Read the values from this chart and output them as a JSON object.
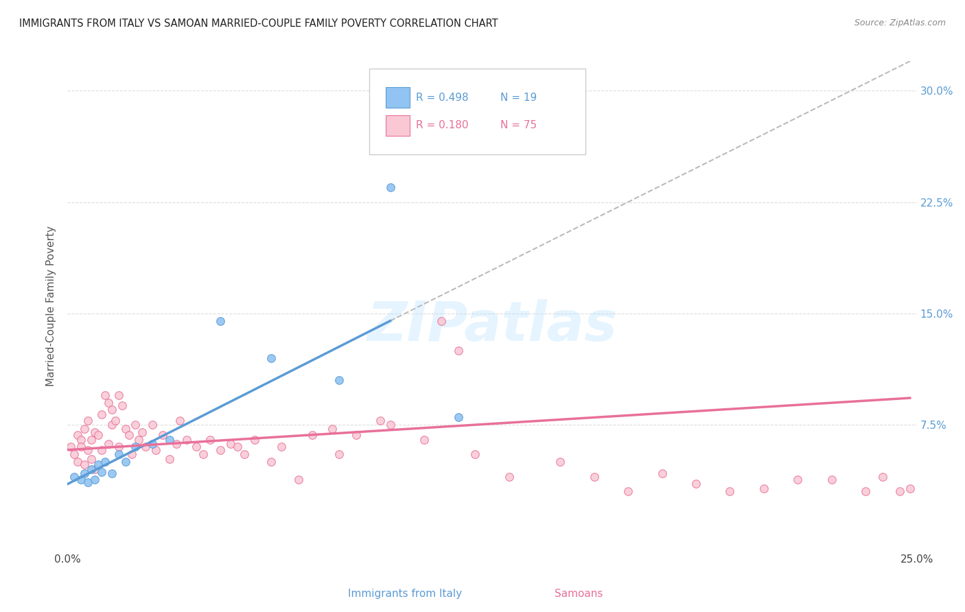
{
  "title": "IMMIGRANTS FROM ITALY VS SAMOAN MARRIED-COUPLE FAMILY POVERTY CORRELATION CHART",
  "source": "Source: ZipAtlas.com",
  "ylabel": "Married-Couple Family Poverty",
  "xlabel_italy": "Immigrants from Italy",
  "xlabel_samoan": "Samoans",
  "watermark": "ZIPatlas",
  "xlim": [
    0.0,
    0.25
  ],
  "ylim": [
    -0.01,
    0.32
  ],
  "yticks_right": [
    0.075,
    0.15,
    0.225,
    0.3
  ],
  "ytick_right_labels": [
    "7.5%",
    "15.0%",
    "22.5%",
    "30.0%"
  ],
  "color_italy": "#91C4F2",
  "color_samoan": "#F9C8D4",
  "color_italy_line": "#5B9BD5",
  "color_samoan_line": "#E8709A",
  "color_dashed": "#BBBBBB",
  "italy_x": [
    0.002,
    0.004,
    0.005,
    0.006,
    0.007,
    0.008,
    0.009,
    0.01,
    0.011,
    0.013,
    0.015,
    0.017,
    0.02,
    0.025,
    0.03,
    0.045,
    0.06,
    0.08,
    0.095,
    0.115
  ],
  "italy_y": [
    0.04,
    0.038,
    0.042,
    0.036,
    0.045,
    0.038,
    0.048,
    0.043,
    0.05,
    0.042,
    0.055,
    0.05,
    0.06,
    0.062,
    0.065,
    0.145,
    0.12,
    0.105,
    0.235,
    0.08
  ],
  "samoan_x": [
    0.001,
    0.002,
    0.003,
    0.003,
    0.004,
    0.004,
    0.005,
    0.005,
    0.006,
    0.006,
    0.007,
    0.007,
    0.008,
    0.008,
    0.009,
    0.01,
    0.01,
    0.011,
    0.012,
    0.012,
    0.013,
    0.013,
    0.014,
    0.015,
    0.015,
    0.016,
    0.017,
    0.018,
    0.019,
    0.02,
    0.021,
    0.022,
    0.023,
    0.025,
    0.026,
    0.028,
    0.03,
    0.032,
    0.033,
    0.035,
    0.038,
    0.04,
    0.042,
    0.045,
    0.048,
    0.05,
    0.052,
    0.055,
    0.06,
    0.063,
    0.068,
    0.072,
    0.078,
    0.08,
    0.085,
    0.092,
    0.095,
    0.105,
    0.11,
    0.115,
    0.12,
    0.13,
    0.145,
    0.155,
    0.165,
    0.175,
    0.185,
    0.195,
    0.205,
    0.215,
    0.225,
    0.235,
    0.24,
    0.245,
    0.248
  ],
  "samoan_y": [
    0.06,
    0.055,
    0.068,
    0.05,
    0.065,
    0.06,
    0.072,
    0.048,
    0.058,
    0.078,
    0.065,
    0.052,
    0.07,
    0.045,
    0.068,
    0.082,
    0.058,
    0.095,
    0.09,
    0.062,
    0.085,
    0.075,
    0.078,
    0.06,
    0.095,
    0.088,
    0.072,
    0.068,
    0.055,
    0.075,
    0.065,
    0.07,
    0.06,
    0.075,
    0.058,
    0.068,
    0.052,
    0.062,
    0.078,
    0.065,
    0.06,
    0.055,
    0.065,
    0.058,
    0.062,
    0.06,
    0.055,
    0.065,
    0.05,
    0.06,
    0.038,
    0.068,
    0.072,
    0.055,
    0.068,
    0.078,
    0.075,
    0.065,
    0.145,
    0.125,
    0.055,
    0.04,
    0.05,
    0.04,
    0.03,
    0.042,
    0.035,
    0.03,
    0.032,
    0.038,
    0.038,
    0.03,
    0.04,
    0.03,
    0.032
  ],
  "italy_line_x0": 0.0,
  "italy_line_y0": 0.035,
  "italy_line_x1": 0.095,
  "italy_line_y1": 0.145,
  "samoan_line_x0": 0.0,
  "samoan_line_y0": 0.058,
  "samoan_line_x1": 0.248,
  "samoan_line_y1": 0.093,
  "dash_line_x0": 0.095,
  "dash_line_y0": 0.145,
  "dash_line_x1": 0.248,
  "dash_line_y1": 0.32
}
